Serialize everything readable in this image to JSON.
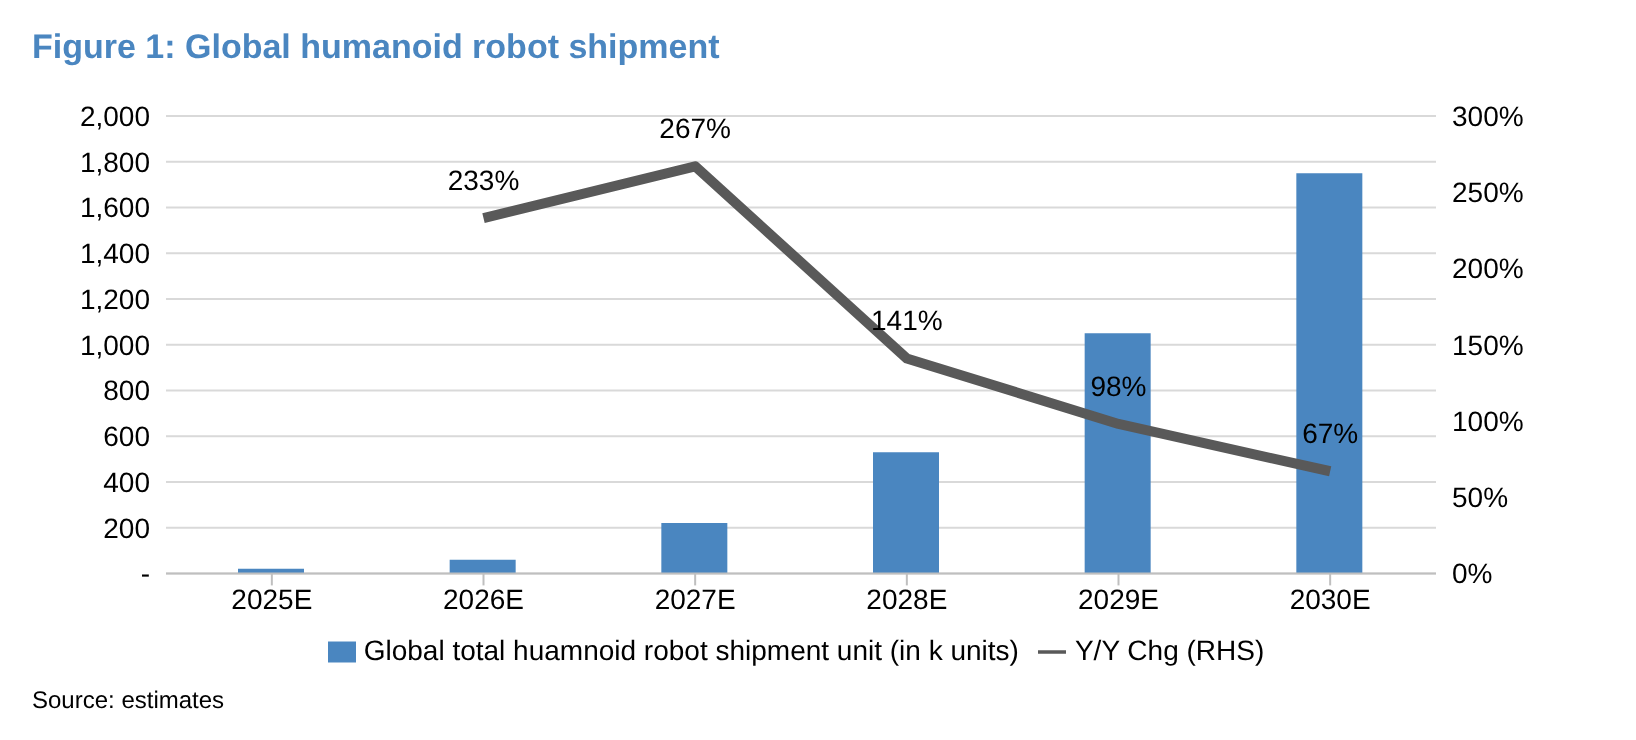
{
  "chart_data": {
    "type": "bar",
    "title": "Figure 1: Global humanoid robot shipment",
    "categories": [
      "2025E",
      "2026E",
      "2027E",
      "2028E",
      "2029E",
      "2030E"
    ],
    "series": [
      {
        "name": "Global total huamnoid robot shipment unit (in k units)",
        "color": "#4a86c0",
        "values": [
          20,
          60,
          220,
          530,
          1050,
          1750
        ]
      },
      {
        "name": "Y/Y Chg (RHS)",
        "type": "line",
        "axis": "y2",
        "color": "#595959",
        "values": [
          null,
          233,
          267,
          141,
          98,
          67
        ],
        "value_labels": [
          null,
          "233%",
          "267%",
          "141%",
          "98%",
          "67%"
        ]
      }
    ],
    "ylim": [
      0,
      2000
    ],
    "yticks": [
      {
        "value": 0,
        "label": "-"
      },
      {
        "value": 200,
        "label": "200"
      },
      {
        "value": 400,
        "label": "400"
      },
      {
        "value": 600,
        "label": "600"
      },
      {
        "value": 800,
        "label": "800"
      },
      {
        "value": 1000,
        "label": "1,000"
      },
      {
        "value": 1200,
        "label": "1,200"
      },
      {
        "value": 1400,
        "label": "1,400"
      },
      {
        "value": 1600,
        "label": "1,600"
      },
      {
        "value": 1800,
        "label": "1,800"
      },
      {
        "value": 2000,
        "label": "2,000"
      }
    ],
    "y2lim": [
      0,
      300
    ],
    "y2ticks": [
      {
        "value": 0,
        "label": "0%"
      },
      {
        "value": 50,
        "label": "50%"
      },
      {
        "value": 100,
        "label": "100%"
      },
      {
        "value": 150,
        "label": "150%"
      },
      {
        "value": 200,
        "label": "200%"
      },
      {
        "value": 250,
        "label": "250%"
      },
      {
        "value": 300,
        "label": "300%"
      }
    ],
    "grid": "y",
    "legend": "bottom",
    "marker": "none",
    "line_style": "solid",
    "annotations": [
      "Source: estimates"
    ]
  }
}
